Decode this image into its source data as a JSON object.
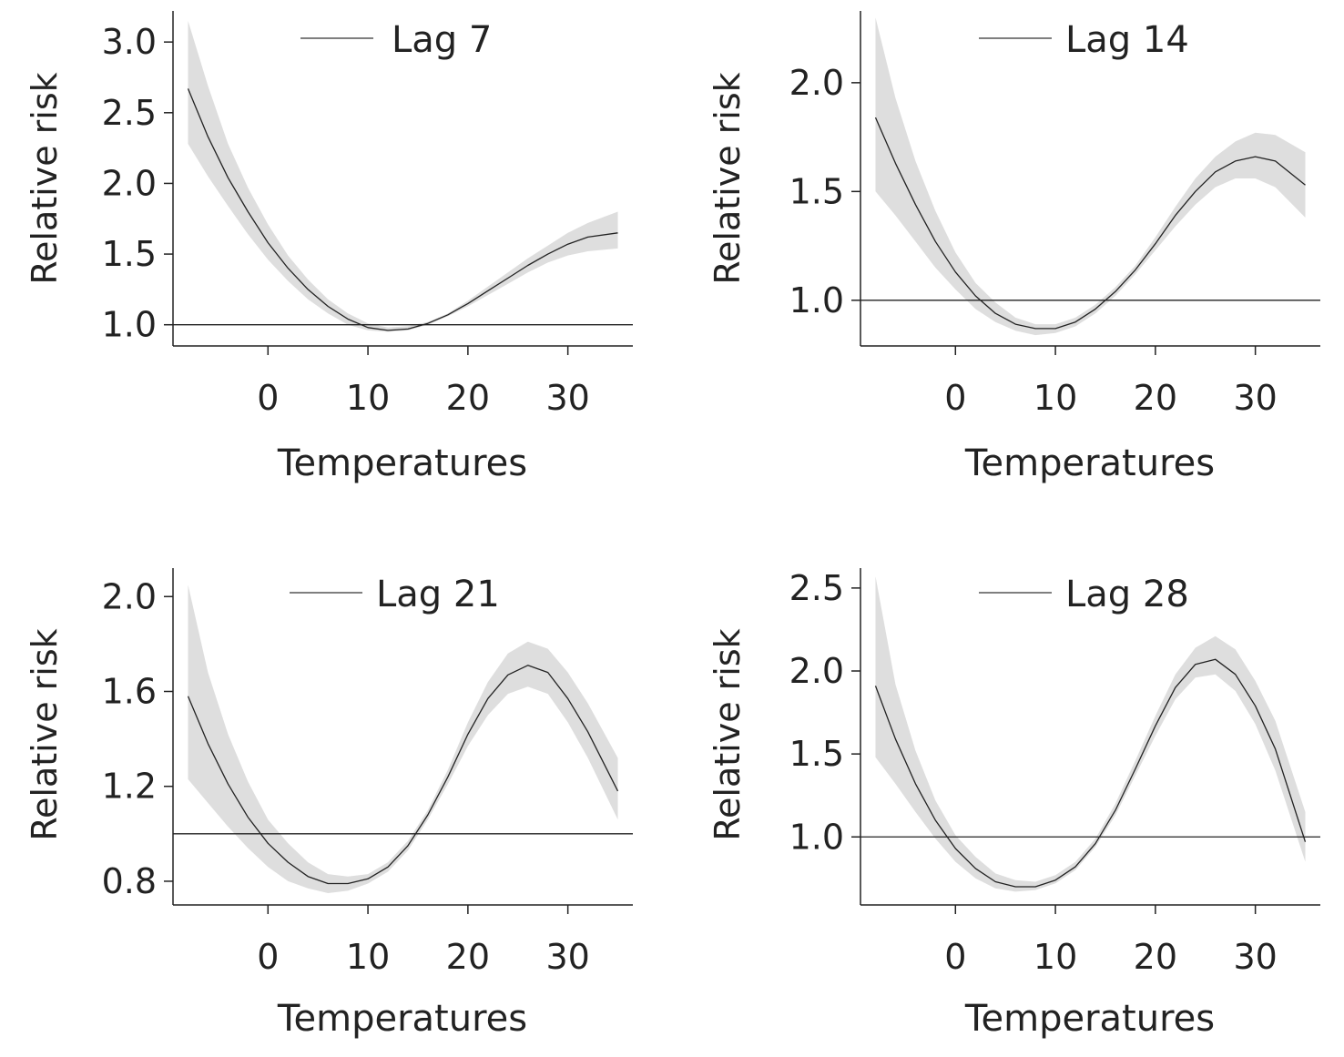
{
  "chart_data": [
    {
      "type": "line",
      "legend": "Lag 7",
      "xlabel": "Temperatures",
      "ylabel": "Relative risk",
      "xlim": [
        -9.5,
        36.5
      ],
      "ylim": [
        0.85,
        3.22
      ],
      "xticks": [
        0,
        10,
        20,
        30
      ],
      "yticks": [
        1.0,
        1.5,
        2.0,
        2.5,
        3.0
      ],
      "ytick_labels": [
        "1.0",
        "1.5",
        "2.0",
        "2.5",
        "3.0"
      ],
      "reference_line": 1.0,
      "legend_position": "top",
      "x": [
        -8,
        -6,
        -4,
        -2,
        0,
        2,
        4,
        6,
        8,
        10,
        12,
        14,
        16,
        18,
        20,
        22,
        24,
        26,
        28,
        30,
        32,
        35
      ],
      "y": [
        2.67,
        2.33,
        2.04,
        1.8,
        1.58,
        1.4,
        1.25,
        1.13,
        1.04,
        0.98,
        0.96,
        0.97,
        1.01,
        1.07,
        1.15,
        1.24,
        1.33,
        1.42,
        1.5,
        1.57,
        1.62,
        1.65
      ],
      "lower": [
        2.28,
        2.05,
        1.84,
        1.64,
        1.46,
        1.31,
        1.18,
        1.08,
        1.0,
        0.96,
        0.95,
        0.96,
        1.0,
        1.06,
        1.13,
        1.21,
        1.29,
        1.37,
        1.44,
        1.49,
        1.52,
        1.54
      ],
      "upper": [
        3.15,
        2.69,
        2.28,
        1.97,
        1.71,
        1.49,
        1.32,
        1.18,
        1.08,
        1.01,
        0.98,
        0.99,
        1.02,
        1.08,
        1.17,
        1.27,
        1.37,
        1.47,
        1.56,
        1.65,
        1.72,
        1.8
      ]
    },
    {
      "type": "line",
      "legend": "Lag 14",
      "xlabel": "Temperatures",
      "ylabel": "Relative risk",
      "xlim": [
        -9.5,
        36.5
      ],
      "ylim": [
        0.79,
        2.33
      ],
      "xticks": [
        0,
        10,
        20,
        30
      ],
      "yticks": [
        1.0,
        1.5,
        2.0
      ],
      "ytick_labels": [
        "1.0",
        "1.5",
        "2.0"
      ],
      "reference_line": 1.0,
      "legend_position": "top",
      "x": [
        -8,
        -6,
        -4,
        -2,
        0,
        2,
        4,
        6,
        8,
        10,
        12,
        14,
        16,
        18,
        20,
        22,
        24,
        26,
        28,
        30,
        32,
        35
      ],
      "y": [
        1.84,
        1.63,
        1.44,
        1.27,
        1.13,
        1.02,
        0.94,
        0.89,
        0.87,
        0.87,
        0.9,
        0.96,
        1.04,
        1.14,
        1.26,
        1.39,
        1.5,
        1.59,
        1.64,
        1.66,
        1.64,
        1.53
      ],
      "lower": [
        1.5,
        1.39,
        1.27,
        1.15,
        1.05,
        0.96,
        0.9,
        0.86,
        0.84,
        0.85,
        0.88,
        0.94,
        1.02,
        1.12,
        1.23,
        1.34,
        1.44,
        1.52,
        1.56,
        1.56,
        1.52,
        1.38
      ],
      "upper": [
        2.3,
        1.93,
        1.64,
        1.41,
        1.22,
        1.08,
        0.99,
        0.92,
        0.89,
        0.89,
        0.92,
        0.98,
        1.06,
        1.16,
        1.29,
        1.43,
        1.56,
        1.66,
        1.73,
        1.77,
        1.76,
        1.68
      ]
    },
    {
      "type": "line",
      "legend": "Lag 21",
      "xlabel": "Temperatures",
      "ylabel": "Relative risk",
      "xlim": [
        -9.5,
        36.5
      ],
      "ylim": [
        0.7,
        2.12
      ],
      "xticks": [
        0,
        10,
        20,
        30
      ],
      "yticks": [
        0.8,
        1.2,
        1.6,
        2.0
      ],
      "ytick_labels": [
        "0.8",
        "1.2",
        "1.6",
        "2.0"
      ],
      "reference_line": 1.0,
      "legend_position": "top",
      "x": [
        -8,
        -6,
        -4,
        -2,
        0,
        2,
        4,
        6,
        8,
        10,
        12,
        14,
        16,
        18,
        20,
        22,
        24,
        26,
        28,
        30,
        32,
        35
      ],
      "y": [
        1.58,
        1.38,
        1.21,
        1.07,
        0.96,
        0.88,
        0.82,
        0.79,
        0.79,
        0.81,
        0.86,
        0.95,
        1.08,
        1.24,
        1.42,
        1.57,
        1.67,
        1.71,
        1.68,
        1.57,
        1.43,
        1.18
      ],
      "lower": [
        1.23,
        1.13,
        1.03,
        0.94,
        0.86,
        0.8,
        0.77,
        0.75,
        0.76,
        0.79,
        0.84,
        0.93,
        1.06,
        1.21,
        1.37,
        1.5,
        1.59,
        1.62,
        1.59,
        1.47,
        1.32,
        1.06
      ],
      "upper": [
        2.05,
        1.68,
        1.42,
        1.22,
        1.06,
        0.96,
        0.88,
        0.83,
        0.82,
        0.83,
        0.88,
        0.97,
        1.1,
        1.27,
        1.47,
        1.64,
        1.76,
        1.81,
        1.78,
        1.68,
        1.55,
        1.32
      ]
    },
    {
      "type": "line",
      "legend": "Lag 28",
      "xlabel": "Temperatures",
      "ylabel": "Relative risk",
      "xlim": [
        -9.5,
        36.5
      ],
      "ylim": [
        0.59,
        2.62
      ],
      "xticks": [
        0,
        10,
        20,
        30
      ],
      "yticks": [
        1.0,
        1.5,
        2.0,
        2.5
      ],
      "ytick_labels": [
        "1.0",
        "1.5",
        "2.0",
        "2.5"
      ],
      "reference_line": 1.0,
      "legend_position": "top",
      "x": [
        -8,
        -6,
        -4,
        -2,
        0,
        2,
        4,
        6,
        8,
        10,
        12,
        14,
        16,
        18,
        20,
        22,
        24,
        26,
        28,
        30,
        32,
        35
      ],
      "y": [
        1.91,
        1.59,
        1.32,
        1.1,
        0.93,
        0.81,
        0.73,
        0.7,
        0.7,
        0.74,
        0.82,
        0.96,
        1.16,
        1.41,
        1.67,
        1.9,
        2.04,
        2.07,
        1.98,
        1.79,
        1.53,
        0.97
      ],
      "lower": [
        1.48,
        1.32,
        1.15,
        0.99,
        0.85,
        0.75,
        0.69,
        0.67,
        0.68,
        0.72,
        0.8,
        0.94,
        1.13,
        1.37,
        1.61,
        1.83,
        1.96,
        1.98,
        1.88,
        1.68,
        1.4,
        0.85
      ],
      "upper": [
        2.57,
        1.92,
        1.52,
        1.22,
        1.01,
        0.88,
        0.78,
        0.74,
        0.73,
        0.77,
        0.85,
        0.99,
        1.2,
        1.46,
        1.73,
        1.98,
        2.14,
        2.21,
        2.13,
        1.94,
        1.7,
        1.15
      ]
    }
  ]
}
